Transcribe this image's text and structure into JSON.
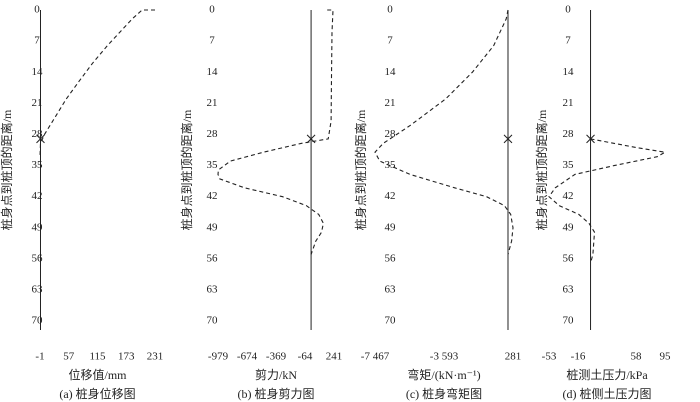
{
  "chart_data": [
    {
      "type": "line",
      "title": "(a) 桩身位移图",
      "x_label": "位移值/mm",
      "y_label": "桩身点到桩顶的距离/m",
      "xlim": [
        -1,
        231
      ],
      "xticks": [
        -1,
        57,
        115,
        173,
        231
      ],
      "ylim": [
        0,
        72
      ],
      "yticks": [
        0,
        7,
        14,
        21,
        28,
        35,
        42,
        49,
        56,
        63,
        70
      ],
      "y_inverted": true,
      "marker_depth": 29,
      "series": [
        {
          "name": "位移",
          "color": "#222",
          "dashed": true,
          "x": [
            231,
            205,
            185,
            160,
            135,
            105,
            78,
            52,
            30,
            8,
            0,
            -1
          ],
          "values": [
            0,
            0,
            2,
            5,
            8,
            12,
            16,
            20,
            24,
            28,
            30,
            33
          ]
        }
      ]
    },
    {
      "type": "line",
      "title": "(b) 桩身剪力图",
      "x_label": "剪力/kN",
      "y_label": "桩身点到桩顶的距离/m",
      "xlim": [
        -979,
        241
      ],
      "xticks": [
        -979,
        -674,
        -369,
        -64,
        241
      ],
      "ylim": [
        0,
        72
      ],
      "yticks": [
        0,
        7,
        14,
        21,
        28,
        35,
        42,
        49,
        56,
        63,
        70
      ],
      "y_inverted": true,
      "marker_depth": 29,
      "series": [
        {
          "name": "剪力",
          "color": "#222",
          "dashed": true,
          "x": [
            170,
            230,
            220,
            215,
            210,
            180,
            -100,
            -500,
            -850,
            -975,
            -979,
            -960,
            -700,
            -300,
            -50,
            80,
            130,
            110,
            50,
            0
          ],
          "values": [
            0,
            0,
            5,
            15,
            25,
            29,
            30,
            32,
            34,
            36,
            37,
            38,
            40,
            42,
            44,
            46,
            48,
            50,
            52,
            55
          ]
        }
      ]
    },
    {
      "type": "line",
      "title": "(c) 桩身弯矩图",
      "x_label": "弯矩/(kN·m⁻¹)",
      "y_label": "桩身点到桩顶的距离/m",
      "xlim": [
        -7467,
        281
      ],
      "xticks": [
        {
          "value": -7467,
          "label": "-7 467"
        },
        {
          "value": -3593,
          "label": "-3 593"
        },
        281
      ],
      "ylim": [
        0,
        72
      ],
      "yticks": [
        0,
        7,
        14,
        21,
        28,
        35,
        42,
        49,
        56,
        63,
        70
      ],
      "y_inverted": true,
      "marker_depth": 29,
      "series": [
        {
          "name": "弯矩",
          "color": "#222",
          "dashed": true,
          "x": [
            0,
            -100,
            -800,
            -2000,
            -3500,
            -5500,
            -7000,
            -7467,
            -7200,
            -5500,
            -3000,
            -1200,
            -200,
            150,
            281,
            200,
            0
          ],
          "values": [
            0,
            2,
            8,
            14,
            20,
            26,
            30,
            32,
            34,
            37,
            40,
            42,
            44,
            46,
            49,
            52,
            55
          ]
        }
      ]
    },
    {
      "type": "line",
      "title": "(d) 桩侧土压力图",
      "x_label": "桩测土压力/kPa",
      "y_label": "桩身点到桩顶的距离/m",
      "xlim": [
        -53,
        95
      ],
      "xticks": [
        -53,
        -16,
        58,
        95
      ],
      "ylim": [
        0,
        72
      ],
      "yticks": [
        0,
        7,
        14,
        21,
        28,
        35,
        42,
        49,
        56,
        63,
        70
      ],
      "y_inverted": true,
      "marker_depth": 29,
      "series": [
        {
          "name": "土压力",
          "color": "#222",
          "dashed": true,
          "x": [
            0,
            60,
            95,
            85,
            30,
            -20,
            -45,
            -53,
            -40,
            -15,
            -2,
            5,
            3,
            0
          ],
          "values": [
            29,
            31,
            32,
            33,
            35,
            37,
            40,
            42,
            44,
            46,
            48,
            50,
            55,
            57
          ]
        }
      ]
    }
  ]
}
